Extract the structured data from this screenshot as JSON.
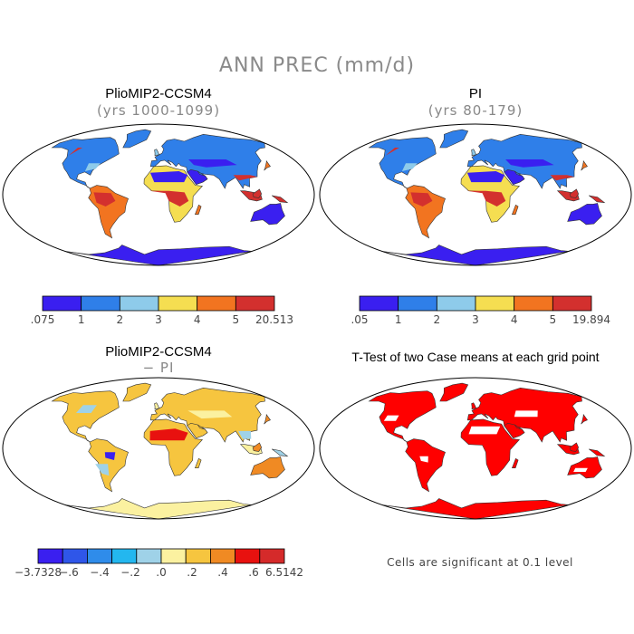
{
  "figure": {
    "title": "ANN PREC (mm/d)"
  },
  "panels": [
    {
      "id": "pliomip",
      "title": "PlioMIP2-CCSM4",
      "subtitle": "(yrs 1000-1099)",
      "colorbar": {
        "colors": [
          "#3a1ff0",
          "#2f7fe9",
          "#8ecbea",
          "#f5de51",
          "#f27420",
          "#d3302e"
        ],
        "labels": [
          ".075",
          "1",
          "2",
          "3",
          "4",
          "5",
          "20.513"
        ]
      }
    },
    {
      "id": "pi",
      "title": "PI",
      "subtitle": "(yrs 80-179)",
      "colorbar": {
        "colors": [
          "#3a1ff0",
          "#2f7fe9",
          "#8ecbea",
          "#f5de51",
          "#f27420",
          "#d3302e"
        ],
        "labels": [
          ".05",
          "1",
          "2",
          "3",
          "4",
          "5",
          "19.894"
        ]
      }
    },
    {
      "id": "diff",
      "title": "PlioMIP2-CCSM4",
      "subtitle": "− PI",
      "colorbar": {
        "colors": [
          "#3a1ff0",
          "#2f56e9",
          "#2f8cea",
          "#23b7ef",
          "#9fd2e8",
          "#fbf1a0",
          "#f6c53f",
          "#f08a23",
          "#e8110f",
          "#d52a2a"
        ],
        "labels": [
          "−3.7328",
          "−.6",
          "−.4",
          "−.2",
          ".0",
          ".2",
          ".4",
          ".6",
          "6.5142"
        ]
      }
    },
    {
      "id": "ttest",
      "title": "T-Test of two Case means at each grid point",
      "note": "Cells are significant at 0.1 level",
      "significance_color": "#ff0000"
    }
  ]
}
